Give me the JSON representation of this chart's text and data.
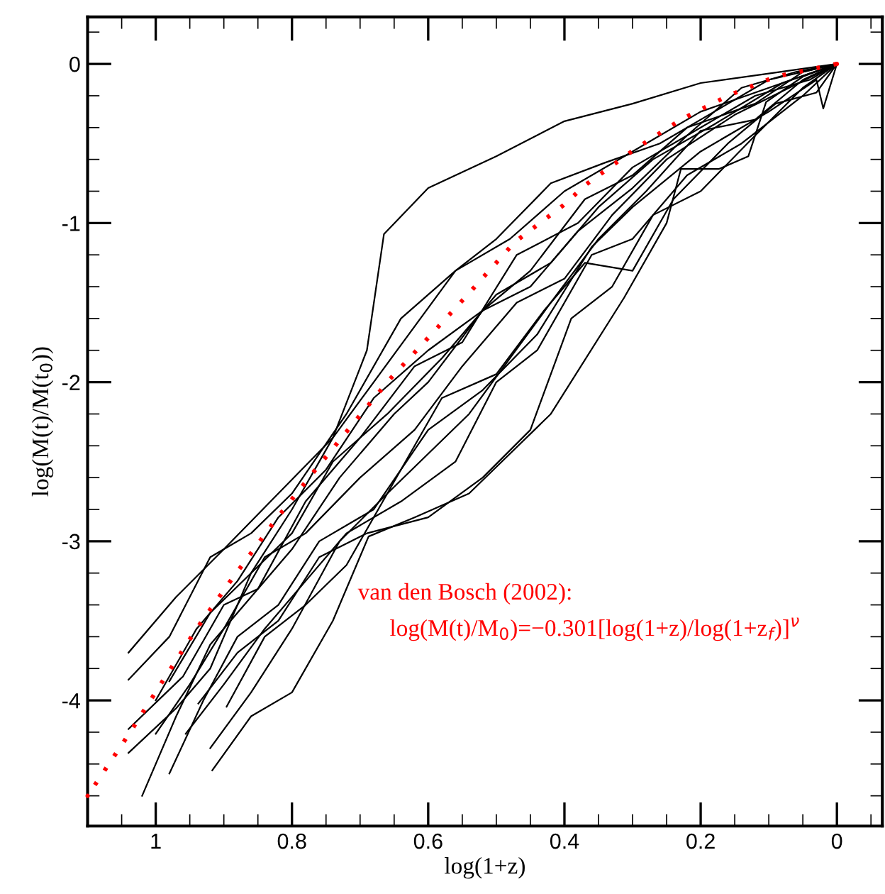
{
  "chart_data": {
    "type": "line",
    "xlabel": "log(1+z)",
    "ylabel": "log(M(t)/M(t$_{0}$))",
    "xlim": [
      1.1,
      -0.0667
    ],
    "ylim": [
      -4.79,
      0.295
    ],
    "xticks": [
      1,
      0.8,
      0.6,
      0.4,
      0.2,
      0
    ],
    "yticks": [
      0,
      -1,
      -2,
      -3,
      -4
    ],
    "annotations": [
      "van den Bosch (2002):",
      "log(M(t)/M$_{0}$)=−0.301[log(1+z)/log(1+z$_{f}$)]$^{ν}$"
    ],
    "series": [
      {
        "color": "#000000",
        "x": [
          1.04,
          0.97,
          0.9,
          0.82,
          0.74,
          0.69,
          0.665,
          0.6,
          0.5,
          0.4,
          0.3,
          0.2,
          0.1,
          0
        ],
        "values": [
          -3.7,
          -3.35,
          -3.05,
          -2.7,
          -2.35,
          -1.8,
          -1.07,
          -0.78,
          -0.58,
          -0.36,
          -0.25,
          -0.12,
          -0.06,
          0
        ]
      },
      {
        "color": "#000000",
        "x": [
          1.04,
          0.98,
          0.92,
          0.86,
          0.8,
          0.72,
          0.64,
          0.56,
          0.48,
          0.4,
          0.3,
          0.2,
          0.1,
          0
        ],
        "values": [
          -3.87,
          -3.6,
          -3.1,
          -2.95,
          -2.7,
          -2.2,
          -1.6,
          -1.3,
          -1.1,
          -0.8,
          -0.55,
          -0.3,
          -0.15,
          0
        ]
      },
      {
        "color": "#000000",
        "x": [
          1.04,
          0.96,
          0.9,
          0.85,
          0.78,
          0.7,
          0.62,
          0.55,
          0.47,
          0.38,
          0.3,
          0.22,
          0.12,
          0.04,
          0
        ],
        "values": [
          -4.18,
          -3.85,
          -3.4,
          -3.3,
          -2.75,
          -2.35,
          -1.9,
          -1.75,
          -1.2,
          -1.0,
          -0.65,
          -0.45,
          -0.2,
          -0.1,
          0
        ]
      },
      {
        "color": "#000000",
        "x": [
          1.04,
          0.97,
          0.92,
          0.86,
          0.8,
          0.74,
          0.66,
          0.58,
          0.5,
          0.42,
          0.35,
          0.27,
          0.18,
          0.08,
          0
        ],
        "values": [
          -4.33,
          -4.05,
          -3.8,
          -3.2,
          -2.95,
          -2.5,
          -2.2,
          -1.85,
          -1.45,
          -1.25,
          -0.9,
          -0.6,
          -0.38,
          -0.12,
          0
        ]
      },
      {
        "color": "#000000",
        "x": [
          1.02,
          0.97,
          0.92,
          0.86,
          0.8,
          0.73,
          0.65,
          0.6,
          0.52,
          0.45,
          0.37,
          0.3,
          0.22,
          0.12,
          0.05,
          0
        ],
        "values": [
          -4.6,
          -4.1,
          -3.65,
          -3.35,
          -3.05,
          -2.6,
          -2.2,
          -2.0,
          -1.55,
          -1.3,
          -0.85,
          -0.7,
          -0.4,
          -0.25,
          -0.05,
          0
        ]
      },
      {
        "color": "#000000",
        "x": [
          1.0,
          0.95,
          0.9,
          0.84,
          0.78,
          0.7,
          0.62,
          0.55,
          0.47,
          0.4,
          0.33,
          0.25,
          0.15,
          0.07,
          0
        ],
        "values": [
          -4.21,
          -3.9,
          -3.55,
          -3.1,
          -2.95,
          -2.6,
          -2.3,
          -1.9,
          -1.5,
          -1.35,
          -0.95,
          -0.6,
          -0.32,
          -0.15,
          0
        ]
      },
      {
        "color": "#000000",
        "x": [
          0.98,
          0.93,
          0.88,
          0.82,
          0.76,
          0.68,
          0.6,
          0.52,
          0.44,
          0.36,
          0.3,
          0.2,
          0.1,
          0.03,
          0.02,
          0
        ],
        "values": [
          -4.46,
          -4.0,
          -3.6,
          -3.4,
          -3.0,
          -2.8,
          -2.3,
          -2.05,
          -1.7,
          -1.15,
          -0.9,
          -0.55,
          -0.3,
          -0.1,
          -0.28,
          0
        ]
      },
      {
        "color": "#000000",
        "x": [
          0.956,
          0.9,
          0.84,
          0.78,
          0.72,
          0.64,
          0.56,
          0.5,
          0.44,
          0.36,
          0.3,
          0.22,
          0.14,
          0.05,
          0
        ],
        "values": [
          -4.21,
          -3.9,
          -3.55,
          -3.25,
          -2.95,
          -2.75,
          -2.5,
          -2.0,
          -1.8,
          -1.2,
          -1.1,
          -0.7,
          -0.5,
          -0.2,
          0
        ]
      },
      {
        "color": "#000000",
        "x": [
          0.9375,
          0.88,
          0.82,
          0.76,
          0.69,
          0.6,
          0.52,
          0.45,
          0.39,
          0.33,
          0.27,
          0.2,
          0.12,
          0.05,
          0
        ],
        "values": [
          -4.02,
          -3.7,
          -3.5,
          -3.1,
          -2.95,
          -2.85,
          -2.6,
          -2.3,
          -1.6,
          -1.4,
          -0.95,
          -0.8,
          -0.45,
          -0.15,
          0
        ]
      },
      {
        "color": "#000000",
        "x": [
          0.917,
          0.86,
          0.8,
          0.74,
          0.6875,
          0.62,
          0.54,
          0.48,
          0.42,
          0.3125,
          0.25,
          0.229,
          0.173,
          0.13,
          0.104,
          0.05,
          0
        ],
        "values": [
          -4.44,
          -4.1,
          -3.95,
          -3.5,
          -2.97,
          -2.85,
          -2.7,
          -2.45,
          -2.2,
          -1.47,
          -1.0,
          -0.66,
          -0.66,
          -0.58,
          -0.24,
          -0.08,
          0
        ]
      },
      {
        "color": "#000000",
        "x": [
          0.896,
          0.84,
          0.78,
          0.72,
          0.66,
          0.6,
          0.54,
          0.48,
          0.42,
          0.35,
          0.28,
          0.2,
          0.12,
          0.05,
          0
        ],
        "values": [
          -4.04,
          -3.6,
          -3.4,
          -3.15,
          -2.7,
          -2.45,
          -2.2,
          -1.85,
          -1.5,
          -1.1,
          -0.8,
          -0.42,
          -0.35,
          -0.1,
          0
        ]
      },
      {
        "color": "#000000",
        "x": [
          0.98,
          0.92,
          0.86,
          0.8,
          0.74,
          0.68,
          0.62,
          0.56,
          0.5,
          0.42,
          0.34,
          0.26,
          0.18,
          0.1,
          0
        ],
        "values": [
          -3.88,
          -3.45,
          -3.2,
          -2.8,
          -2.35,
          -2.0,
          -1.65,
          -1.3,
          -1.1,
          -0.75,
          -0.62,
          -0.5,
          -0.3,
          -0.1,
          0
        ]
      },
      {
        "color": "#000000",
        "x": [
          1.0,
          0.94,
          0.88,
          0.82,
          0.75,
          0.68,
          0.6,
          0.52,
          0.45,
          0.38,
          0.3,
          0.22,
          0.14,
          0.06,
          0
        ],
        "values": [
          -4.0,
          -3.55,
          -3.25,
          -2.85,
          -2.55,
          -2.1,
          -1.8,
          -1.55,
          -1.4,
          -1.05,
          -0.78,
          -0.45,
          -0.15,
          -0.05,
          0
        ]
      },
      {
        "color": "#000000",
        "x": [
          0.92,
          0.86,
          0.8,
          0.73,
          0.66,
          0.58,
          0.5,
          0.43,
          0.37,
          0.3,
          0.24,
          0.16,
          0.09,
          0.03,
          0
        ],
        "values": [
          -4.3,
          -3.95,
          -3.55,
          -3.0,
          -2.7,
          -2.1,
          -1.95,
          -1.55,
          -1.25,
          -1.3,
          -0.85,
          -0.5,
          -0.25,
          -0.18,
          0
        ]
      },
      {
        "color": "#ff0000",
        "line_style": "dotted",
        "x": [
          1.1,
          1.0375,
          0.99,
          0.94,
          0.892,
          0.823,
          0.773,
          0.71,
          0.656,
          0.604,
          0.542,
          0.473,
          0.402,
          0.369,
          0.298,
          0.229,
          0.16,
          0.09,
          0
        ],
        "values": [
          -4.6,
          -4.2,
          -3.88,
          -3.55,
          -3.26,
          -2.86,
          -2.59,
          -2.26,
          -1.98,
          -1.74,
          -1.45,
          -1.12,
          -0.89,
          -0.76,
          -0.54,
          -0.35,
          -0.2,
          -0.08,
          0
        ]
      }
    ]
  }
}
